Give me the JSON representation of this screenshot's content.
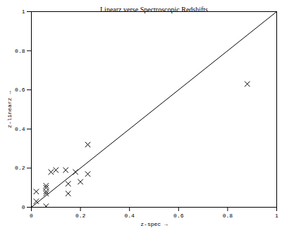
{
  "chart_data": {
    "type": "scatter",
    "title": "Linearz verse Spectroscopic Redshifts",
    "x_label": "z-spec",
    "y_label": "z-linearz",
    "xlim": [
      0,
      1
    ],
    "ylim": [
      0,
      1
    ],
    "xticks": [
      0,
      0.2,
      0.4,
      0.6,
      0.8,
      1
    ],
    "yticks": [
      0,
      0.2,
      0.4,
      0.6,
      0.8,
      1
    ],
    "grid": false,
    "series": [
      {
        "type": "scatter",
        "marker": "x",
        "color": "#000000",
        "x": [
          0.88,
          0.23,
          0.23,
          0.2,
          0.18,
          0.14,
          0.15,
          0.15,
          0.1,
          0.08,
          0.06,
          0.06,
          0.06,
          0.06,
          0.02,
          0.02,
          0.06
        ],
        "values": [
          0.63,
          0.32,
          0.17,
          0.13,
          0.18,
          0.19,
          0.12,
          0.07,
          0.19,
          0.18,
          0.11,
          0.1,
          0.08,
          0.07,
          0.08,
          0.03,
          0.005
        ]
      },
      {
        "type": "line",
        "line_style": "solid",
        "color": "#000000",
        "x": [
          0,
          1
        ],
        "values": [
          0,
          1
        ]
      }
    ]
  }
}
